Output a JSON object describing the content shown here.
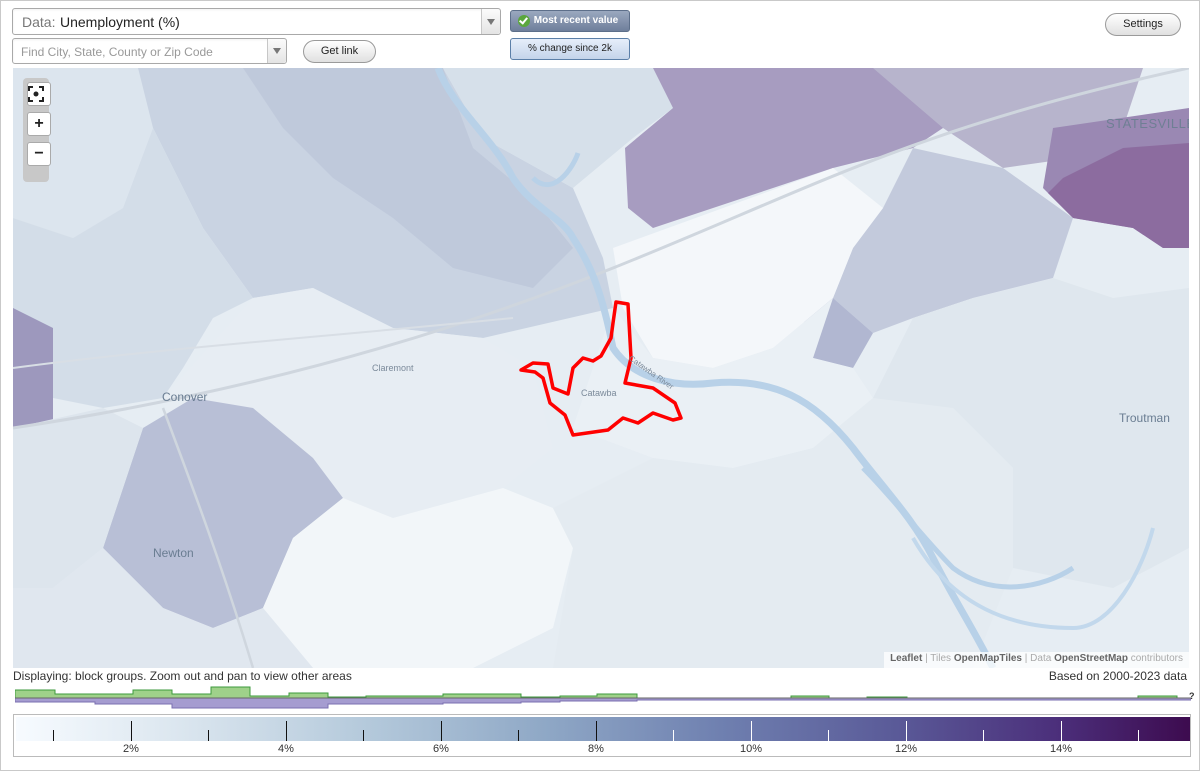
{
  "controls": {
    "data_prefix": "Data:",
    "data_value": "Unemployment (%)",
    "search_placeholder": "Find City, State, County or Zip Code",
    "get_link_label": "Get link",
    "settings_label": "Settings",
    "mode_recent_label": "Most recent value",
    "mode_change_label": "% change since 2k"
  },
  "map": {
    "labels": {
      "statesville": "STATESVILLE",
      "conover": "Conover",
      "claremont": "Claremont",
      "catawba": "Catawba",
      "catawba_river": "Catawba River",
      "troutman": "Troutman",
      "newton": "Newton"
    },
    "highlight_color": "#ff0000",
    "attribution": {
      "leaflet": "Leaflet",
      "tiles_prefix": "Tiles",
      "tiles": "OpenMapTiles",
      "data_prefix": "Data",
      "data": "OpenStreetMap",
      "contributors": "contributors"
    }
  },
  "footer": {
    "display_note": "Displaying: block groups. Zoom out and pan to view other areas",
    "data_years": "Based on 2000-2023 data",
    "histogram_unknown": "?"
  },
  "legend": {
    "ticks": [
      "2%",
      "4%",
      "6%",
      "8%",
      "10%",
      "12%",
      "14%"
    ],
    "color_low": "#f7fbff",
    "color_high": "#3d0b4f"
  }
}
